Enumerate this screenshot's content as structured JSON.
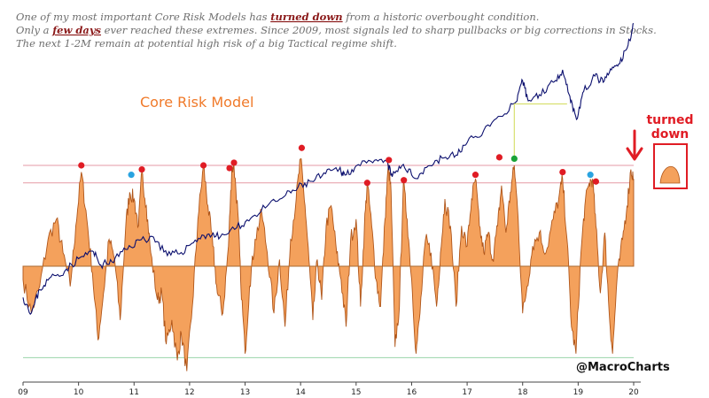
{
  "notes": [
    [
      "One of my most important Core Risk Models has ",
      "turned down",
      " from a historic overbought condition."
    ],
    [
      "Only a ",
      "few days",
      " ever reached these extremes. Since 2009, most signals led to sharp pullbacks or big corrections in Stocks."
    ],
    [
      "The next 1-2M remain at potential high risk of a big Tactical regime shift.",
      "",
      ""
    ]
  ],
  "annotation": {
    "turned": "turned",
    "down": "down"
  },
  "handle": "@MacroCharts",
  "colors": {
    "oscillator_fill": "#f4a15c",
    "oscillator_line": "#b0561a",
    "index_line": "#0b0f6e",
    "upper_band": "#e69aa6",
    "zero_line": "#a86a30",
    "lower_band": "#9ad4a8",
    "signal_red": "#e01c24",
    "signal_blue": "#2aa3e0",
    "signal_green": "#1aa338",
    "connector": "#d8e070"
  },
  "chart_data": {
    "type": "line",
    "title": "Core Risk Model",
    "xlabel": "",
    "ylabel": "",
    "x_ticks": [
      "09",
      "10",
      "11",
      "12",
      "13",
      "14",
      "15",
      "16",
      "17",
      "18",
      "19",
      "20"
    ],
    "x_range": [
      2009.0,
      2020.0
    ],
    "oscillator_range": [
      -1.0,
      1.0
    ],
    "index_range": [
      0.0,
      1.0
    ],
    "bands": {
      "upper_extreme": 0.75,
      "upper": 0.62,
      "zero": 0.0,
      "lower": -0.68
    },
    "series": [
      {
        "name": "Core Risk Model",
        "kind": "area",
        "points": [
          [
            2009.0,
            -0.1
          ],
          [
            2009.15,
            -0.35
          ],
          [
            2009.3,
            -0.15
          ],
          [
            2009.45,
            0.2
          ],
          [
            2009.6,
            0.35
          ],
          [
            2009.72,
            0.1
          ],
          [
            2009.85,
            -0.15
          ],
          [
            2009.95,
            0.3
          ],
          [
            2010.05,
            0.7
          ],
          [
            2010.15,
            0.35
          ],
          [
            2010.25,
            -0.05
          ],
          [
            2010.35,
            -0.55
          ],
          [
            2010.45,
            -0.2
          ],
          [
            2010.55,
            0.2
          ],
          [
            2010.65,
            0.05
          ],
          [
            2010.75,
            -0.4
          ],
          [
            2010.85,
            0.3
          ],
          [
            2010.92,
            0.55
          ],
          [
            2011.0,
            0.5
          ],
          [
            2011.08,
            0.3
          ],
          [
            2011.14,
            0.7
          ],
          [
            2011.22,
            0.45
          ],
          [
            2011.3,
            0.1
          ],
          [
            2011.42,
            -0.25
          ],
          [
            2011.5,
            -0.2
          ],
          [
            2011.58,
            -0.58
          ],
          [
            2011.68,
            -0.4
          ],
          [
            2011.78,
            -0.7
          ],
          [
            2011.85,
            -0.5
          ],
          [
            2011.95,
            -0.78
          ],
          [
            2012.05,
            -0.3
          ],
          [
            2012.15,
            0.35
          ],
          [
            2012.25,
            0.75
          ],
          [
            2012.33,
            0.45
          ],
          [
            2012.42,
            0.15
          ],
          [
            2012.5,
            -0.2
          ],
          [
            2012.6,
            -0.35
          ],
          [
            2012.7,
            0.15
          ],
          [
            2012.76,
            0.72
          ],
          [
            2012.8,
            0.75
          ],
          [
            2012.87,
            0.4
          ],
          [
            2012.92,
            -0.1
          ],
          [
            2013.0,
            -0.65
          ],
          [
            2013.08,
            -0.15
          ],
          [
            2013.18,
            0.2
          ],
          [
            2013.3,
            0.4
          ],
          [
            2013.4,
            0.1
          ],
          [
            2013.52,
            -0.35
          ],
          [
            2013.62,
            0.05
          ],
          [
            2013.72,
            -0.45
          ],
          [
            2013.82,
            0.2
          ],
          [
            2013.92,
            0.5
          ],
          [
            2014.0,
            0.8
          ],
          [
            2014.08,
            0.45
          ],
          [
            2014.15,
            0.05
          ],
          [
            2014.22,
            -0.4
          ],
          [
            2014.3,
            0.05
          ],
          [
            2014.38,
            -0.25
          ],
          [
            2014.46,
            0.3
          ],
          [
            2014.55,
            0.45
          ],
          [
            2014.65,
            0.1
          ],
          [
            2014.73,
            -0.1
          ],
          [
            2014.82,
            -0.45
          ],
          [
            2014.9,
            0.2
          ],
          [
            2015.0,
            0.35
          ],
          [
            2015.08,
            -0.3
          ],
          [
            2015.15,
            0.3
          ],
          [
            2015.2,
            0.62
          ],
          [
            2015.28,
            0.3
          ],
          [
            2015.36,
            -0.1
          ],
          [
            2015.44,
            -0.3
          ],
          [
            2015.52,
            0.35
          ],
          [
            2015.58,
            0.75
          ],
          [
            2015.63,
            0.55
          ],
          [
            2015.7,
            -0.6
          ],
          [
            2015.78,
            -0.3
          ],
          [
            2015.85,
            0.62
          ],
          [
            2015.92,
            0.35
          ],
          [
            2016.0,
            -0.1
          ],
          [
            2016.08,
            -0.65
          ],
          [
            2016.15,
            -0.35
          ],
          [
            2016.25,
            0.2
          ],
          [
            2016.35,
            0.1
          ],
          [
            2016.45,
            -0.3
          ],
          [
            2016.52,
            0.1
          ],
          [
            2016.6,
            0.5
          ],
          [
            2016.7,
            0.3
          ],
          [
            2016.8,
            -0.3
          ],
          [
            2016.9,
            0.3
          ],
          [
            2017.0,
            0.15
          ],
          [
            2017.08,
            0.5
          ],
          [
            2017.15,
            0.65
          ],
          [
            2017.22,
            0.3
          ],
          [
            2017.3,
            0.1
          ],
          [
            2017.38,
            0.25
          ],
          [
            2017.46,
            0.05
          ],
          [
            2017.55,
            0.3
          ],
          [
            2017.62,
            0.6
          ],
          [
            2017.7,
            0.25
          ],
          [
            2017.78,
            0.55
          ],
          [
            2017.85,
            0.75
          ],
          [
            2017.92,
            0.35
          ],
          [
            2018.0,
            -0.35
          ],
          [
            2018.08,
            -0.15
          ],
          [
            2018.18,
            0.15
          ],
          [
            2018.3,
            0.25
          ],
          [
            2018.42,
            0.1
          ],
          [
            2018.55,
            0.35
          ],
          [
            2018.65,
            0.5
          ],
          [
            2018.72,
            0.65
          ],
          [
            2018.8,
            0.2
          ],
          [
            2018.88,
            -0.45
          ],
          [
            2018.96,
            -0.65
          ],
          [
            2019.05,
            0.1
          ],
          [
            2019.12,
            0.45
          ],
          [
            2019.2,
            0.62
          ],
          [
            2019.26,
            0.65
          ],
          [
            2019.32,
            0.3
          ],
          [
            2019.4,
            -0.2
          ],
          [
            2019.48,
            0.25
          ],
          [
            2019.56,
            -0.35
          ],
          [
            2019.62,
            -0.65
          ],
          [
            2019.7,
            -0.1
          ],
          [
            2019.8,
            0.2
          ],
          [
            2019.88,
            0.45
          ],
          [
            2019.95,
            0.72
          ],
          [
            2020.0,
            0.65
          ]
        ]
      },
      {
        "name": "Stock index",
        "kind": "line",
        "points": [
          [
            2009.0,
            0.05
          ],
          [
            2009.15,
            -0.05
          ],
          [
            2009.3,
            0.1
          ],
          [
            2009.5,
            0.18
          ],
          [
            2009.75,
            0.22
          ],
          [
            2010.0,
            0.3
          ],
          [
            2010.25,
            0.35
          ],
          [
            2010.4,
            0.26
          ],
          [
            2010.6,
            0.28
          ],
          [
            2010.85,
            0.36
          ],
          [
            2011.1,
            0.42
          ],
          [
            2011.35,
            0.44
          ],
          [
            2011.6,
            0.32
          ],
          [
            2011.85,
            0.34
          ],
          [
            2012.1,
            0.42
          ],
          [
            2012.35,
            0.46
          ],
          [
            2012.55,
            0.44
          ],
          [
            2012.85,
            0.5
          ],
          [
            2013.1,
            0.56
          ],
          [
            2013.4,
            0.64
          ],
          [
            2013.7,
            0.7
          ],
          [
            2013.95,
            0.76
          ],
          [
            2014.2,
            0.8
          ],
          [
            2014.45,
            0.85
          ],
          [
            2014.7,
            0.88
          ],
          [
            2014.8,
            0.84
          ],
          [
            2015.0,
            0.9
          ],
          [
            2015.3,
            0.92
          ],
          [
            2015.55,
            0.93
          ],
          [
            2015.65,
            0.83
          ],
          [
            2015.85,
            0.91
          ],
          [
            2016.05,
            0.82
          ],
          [
            2016.3,
            0.9
          ],
          [
            2016.55,
            0.95
          ],
          [
            2016.8,
            0.97
          ],
          [
            2017.0,
            1.05
          ],
          [
            2017.3,
            1.13
          ],
          [
            2017.6,
            1.22
          ],
          [
            2017.9,
            1.32
          ],
          [
            2018.0,
            1.45
          ],
          [
            2018.1,
            1.32
          ],
          [
            2018.3,
            1.36
          ],
          [
            2018.55,
            1.44
          ],
          [
            2018.72,
            1.52
          ],
          [
            2018.85,
            1.35
          ],
          [
            2018.97,
            1.2
          ],
          [
            2019.1,
            1.38
          ],
          [
            2019.3,
            1.48
          ],
          [
            2019.45,
            1.44
          ],
          [
            2019.6,
            1.52
          ],
          [
            2019.75,
            1.56
          ],
          [
            2019.9,
            1.68
          ],
          [
            2020.0,
            1.82
          ]
        ]
      }
    ],
    "signals": [
      {
        "x": 2010.05,
        "y": 0.75,
        "color": "red"
      },
      {
        "x": 2010.95,
        "y": 0.68,
        "color": "blue"
      },
      {
        "x": 2011.14,
        "y": 0.72,
        "color": "red"
      },
      {
        "x": 2012.25,
        "y": 0.75,
        "color": "red"
      },
      {
        "x": 2012.72,
        "y": 0.73,
        "color": "red"
      },
      {
        "x": 2012.8,
        "y": 0.77,
        "color": "red"
      },
      {
        "x": 2014.02,
        "y": 0.88,
        "color": "red"
      },
      {
        "x": 2015.2,
        "y": 0.62,
        "color": "red"
      },
      {
        "x": 2015.59,
        "y": 0.79,
        "color": "red"
      },
      {
        "x": 2015.86,
        "y": 0.64,
        "color": "red"
      },
      {
        "x": 2017.15,
        "y": 0.68,
        "color": "red"
      },
      {
        "x": 2017.58,
        "y": 0.81,
        "color": "red"
      },
      {
        "x": 2017.85,
        "y": 0.8,
        "color": "green"
      },
      {
        "x": 2018.72,
        "y": 0.7,
        "color": "red"
      },
      {
        "x": 2019.22,
        "y": 0.68,
        "color": "blue"
      },
      {
        "x": 2019.32,
        "y": 0.63,
        "color": "red"
      }
    ]
  }
}
